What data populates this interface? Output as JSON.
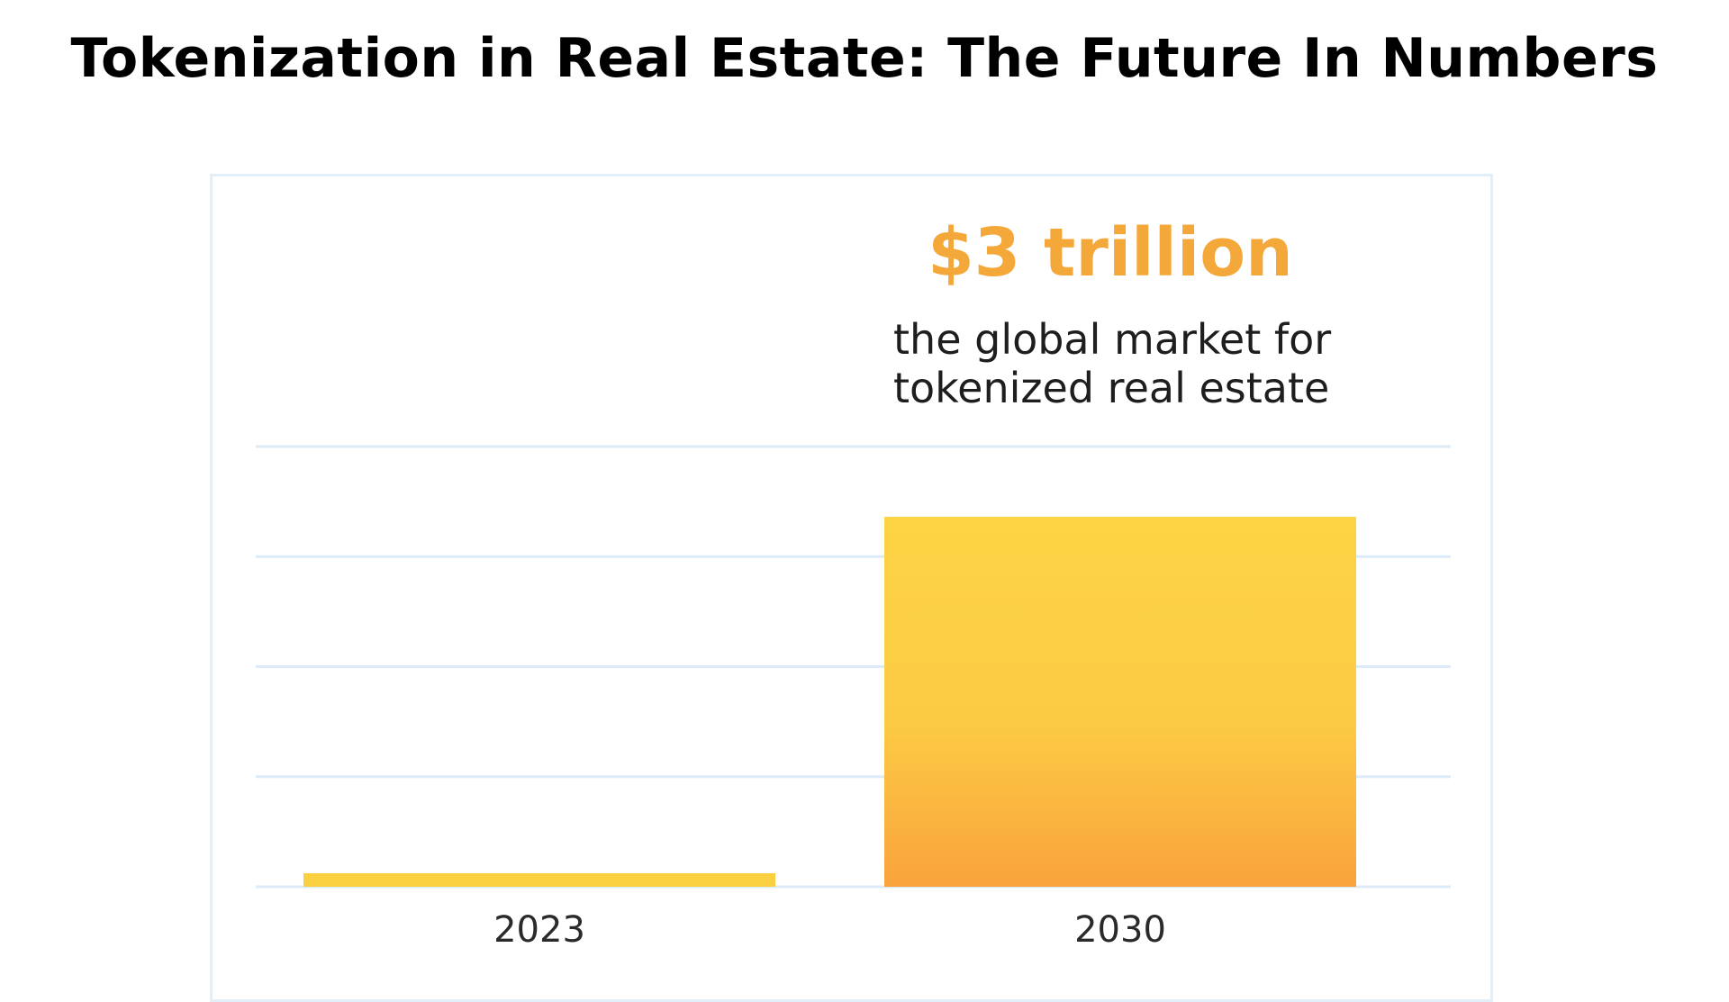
{
  "chart_data": {
    "type": "bar",
    "title": "Tokenization in Real Estate: The Future In Numbers",
    "annotation": {
      "headline": "$3 trillion",
      "lines": [
        "the global market for",
        "tokenized real estate"
      ]
    },
    "categories": [
      "2023",
      "2030"
    ],
    "values": [
      0.11,
      3
    ],
    "unit": "trillion USD",
    "ylim": [
      0,
      3.57
    ],
    "gridlines": 5,
    "grid": true,
    "xlabel": "",
    "ylabel": "",
    "colors": {
      "bar_top": "#fdd444",
      "bar_bottom": "#f9a33c",
      "small_bar": "#fbd040",
      "grid": "#dcebf7",
      "headline": "#f5a83a"
    }
  }
}
